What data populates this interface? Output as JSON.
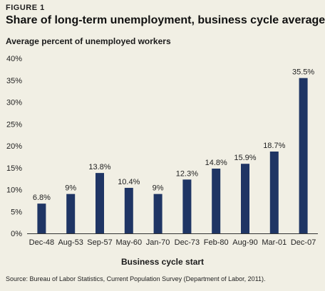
{
  "figure_label": "FIGURE 1",
  "chart_data": {
    "type": "bar",
    "title": "Share of long-term unemployment, business cycle averages",
    "ylabel": "Average percent of unemployed workers",
    "xlabel": "Business cycle start",
    "categories": [
      "Dec-48",
      "Aug-53",
      "Sep-57",
      "May-60",
      "Jan-70",
      "Dec-73",
      "Feb-80",
      "Aug-90",
      "Mar-01",
      "Dec-07"
    ],
    "values": [
      6.8,
      9,
      13.8,
      10.4,
      9,
      12.3,
      14.8,
      15.9,
      18.7,
      35.5
    ],
    "data_labels": [
      "6.8%",
      "9%",
      "13.8%",
      "10.4%",
      "9%",
      "12.3%",
      "14.8%",
      "15.9%",
      "18.7%",
      "35.5%"
    ],
    "ylim": [
      0,
      40
    ],
    "yticks": [
      0,
      5,
      10,
      15,
      20,
      25,
      30,
      35,
      40
    ],
    "ytick_labels": [
      "0%",
      "5%",
      "10%",
      "15%",
      "20%",
      "25%",
      "30%",
      "35%",
      "40%"
    ],
    "bar_color": "#1f3564",
    "grid": false
  },
  "source": "Source: Bureau of Labor Statistics, Current Population Survey (Department of Labor, 2011)."
}
